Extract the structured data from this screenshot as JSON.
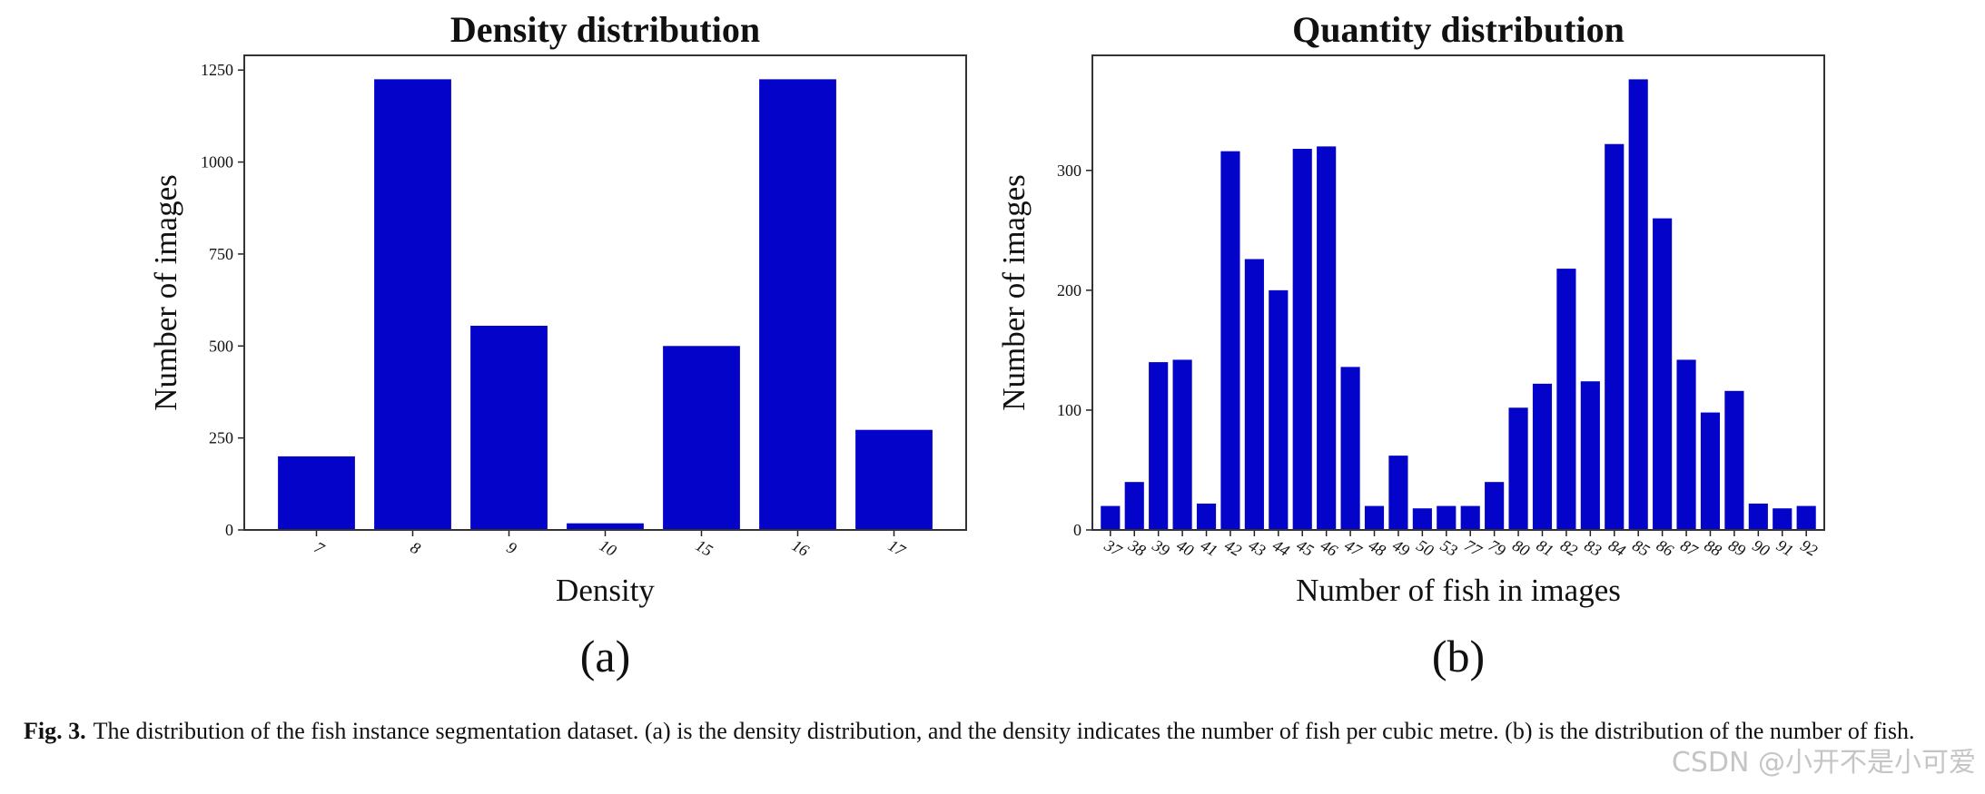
{
  "chart_data": [
    {
      "type": "bar",
      "title": "Density distribution",
      "x_label": "Density",
      "y_label": "Number of images",
      "panel_label": "(a)",
      "categories": [
        "7",
        "8",
        "9",
        "10",
        "15",
        "16",
        "17"
      ],
      "values": [
        200,
        1225,
        555,
        18,
        500,
        1225,
        272
      ],
      "color": "#0303c9",
      "ylim": [
        0,
        1290
      ],
      "yticks": [
        0,
        250,
        500,
        750,
        1000,
        1250
      ],
      "grid": false
    },
    {
      "type": "bar",
      "title": "Quantity distribution",
      "x_label": "Number of fish in images",
      "y_label": "Number of images",
      "panel_label": "(b)",
      "categories": [
        "37",
        "38",
        "39",
        "40",
        "41",
        "42",
        "43",
        "44",
        "45",
        "46",
        "47",
        "48",
        "49",
        "50",
        "53",
        "77",
        "79",
        "80",
        "81",
        "82",
        "83",
        "84",
        "85",
        "86",
        "87",
        "88",
        "89",
        "90",
        "91",
        "92"
      ],
      "values": [
        20,
        40,
        140,
        142,
        22,
        316,
        226,
        200,
        318,
        320,
        136,
        20,
        62,
        18,
        20,
        20,
        40,
        102,
        122,
        218,
        124,
        322,
        376,
        260,
        142,
        98,
        116,
        22,
        18,
        20
      ],
      "color": "#0303c9",
      "ylim": [
        0,
        396
      ],
      "yticks": [
        0,
        100,
        200,
        300
      ],
      "grid": false
    }
  ],
  "caption": {
    "label": "Fig. 3.",
    "text": "The distribution of the fish instance segmentation dataset. (a) is the density distribution, and the density indicates the number of fish per cubic metre. (b) is the distribution of the number of fish."
  },
  "watermark": "CSDN @小开不是小可爱"
}
